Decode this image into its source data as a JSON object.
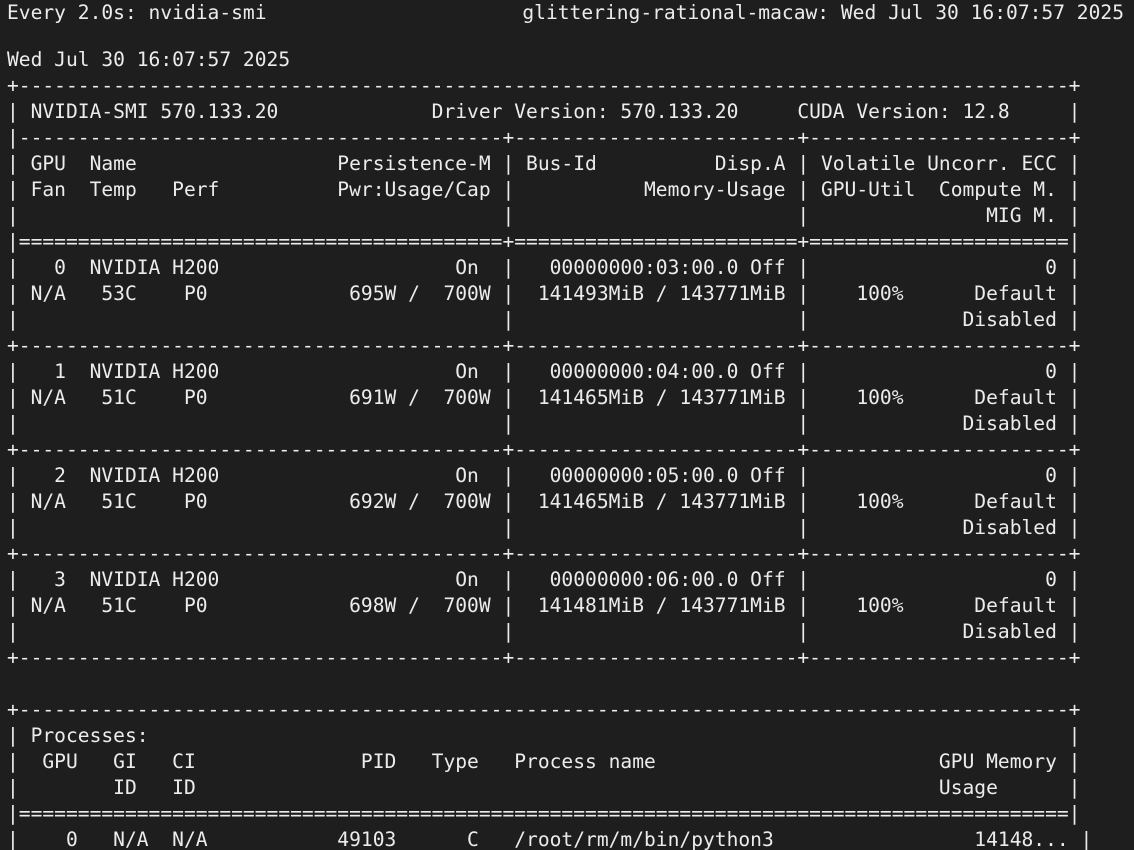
{
  "header": {
    "watch_command": "Every 2.0s: nvidia-smi",
    "host_time": "glittering-rational-macaw: Wed Jul 30 16:07:57 2025"
  },
  "output": {
    "lines": [
      "Wed Jul 30 16:07:57 2025",
      "+-----------------------------------------------------------------------------------------+",
      "| NVIDIA-SMI 570.133.20             Driver Version: 570.133.20     CUDA Version: 12.8     |",
      "|-----------------------------------------+------------------------+----------------------+",
      "| GPU  Name                 Persistence-M | Bus-Id          Disp.A | Volatile Uncorr. ECC |",
      "| Fan  Temp   Perf          Pwr:Usage/Cap |           Memory-Usage | GPU-Util  Compute M. |",
      "|                                         |                        |               MIG M. |",
      "|=========================================+========================+======================|",
      "|   0  NVIDIA H200                    On  |   00000000:03:00.0 Off |                    0 |",
      "| N/A   53C    P0            695W /  700W |  141493MiB / 143771MiB |    100%      Default |",
      "|                                         |                        |             Disabled |",
      "+-----------------------------------------+------------------------+----------------------+",
      "|   1  NVIDIA H200                    On  |   00000000:04:00.0 Off |                    0 |",
      "| N/A   51C    P0            691W /  700W |  141465MiB / 143771MiB |    100%      Default |",
      "|                                         |                        |             Disabled |",
      "+-----------------------------------------+------------------------+----------------------+",
      "|   2  NVIDIA H200                    On  |   00000000:05:00.0 Off |                    0 |",
      "| N/A   51C    P0            692W /  700W |  141465MiB / 143771MiB |    100%      Default |",
      "|                                         |                        |             Disabled |",
      "+-----------------------------------------+------------------------+----------------------+",
      "|   3  NVIDIA H200                    On  |   00000000:06:00.0 Off |                    0 |",
      "| N/A   51C    P0            698W /  700W |  141481MiB / 143771MiB |    100%      Default |",
      "|                                         |                        |             Disabled |",
      "+-----------------------------------------+------------------------+----------------------+",
      "",
      "",
      "+-----------------------------------------------------------------------------------------+",
      "| Processes:                                                                              |",
      "|  GPU   GI   CI              PID   Type   Process name                        GPU Memory |",
      "|        ID   ID                                                               Usage      |",
      "|=========================================================================================|",
      "|    0   N/A  N/A           49103      C   /root/rm/m/bin/python3                 14148... |"
    ]
  },
  "colors": {
    "background": "#1e1e1e",
    "foreground": "#ececec"
  }
}
